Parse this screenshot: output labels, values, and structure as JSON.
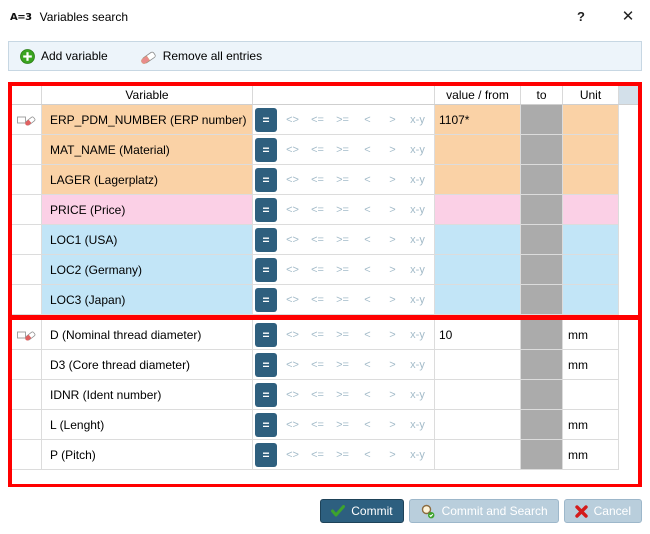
{
  "window": {
    "icon_text": "A=3",
    "title": "Variables search",
    "help_glyph": "?",
    "close_glyph": "✕"
  },
  "toolbar": {
    "add_variable": "Add variable",
    "remove_all": "Remove all entries"
  },
  "table": {
    "headers": {
      "variable": "Variable",
      "value_from": "value / from",
      "to": "to",
      "unit": "Unit"
    },
    "operators": [
      {
        "name": "eq",
        "label": "=",
        "selected": true
      },
      {
        "name": "ne",
        "label": "<>",
        "selected": false
      },
      {
        "name": "le",
        "label": "<=",
        "selected": false
      },
      {
        "name": "ge",
        "label": ">=",
        "selected": false
      },
      {
        "name": "lt",
        "label": "<",
        "selected": false
      },
      {
        "name": "gt",
        "label": ">",
        "selected": false
      },
      {
        "name": "range",
        "label": "x-y",
        "selected": false
      }
    ],
    "groups": [
      {
        "rows": [
          {
            "label": "ERP_PDM_NUMBER (ERP number)",
            "color": "peach",
            "edit_icon": true,
            "value": "1107*",
            "unit": ""
          },
          {
            "label": "MAT_NAME (Material)",
            "color": "peach",
            "edit_icon": false,
            "value": "",
            "unit": ""
          },
          {
            "label": "LAGER (Lagerplatz)",
            "color": "peach",
            "edit_icon": false,
            "value": "",
            "unit": ""
          },
          {
            "label": "PRICE (Price)",
            "color": "pink",
            "edit_icon": false,
            "value": "",
            "unit": ""
          },
          {
            "label": "LOC1 (USA)",
            "color": "blue",
            "edit_icon": false,
            "value": "",
            "unit": ""
          },
          {
            "label": "LOC2 (Germany)",
            "color": "blue",
            "edit_icon": false,
            "value": "",
            "unit": ""
          },
          {
            "label": "LOC3 (Japan)",
            "color": "blue",
            "edit_icon": false,
            "value": "",
            "unit": ""
          }
        ]
      },
      {
        "rows": [
          {
            "label": "D (Nominal thread diameter)",
            "color": "white",
            "edit_icon": true,
            "value": "10",
            "unit": "mm"
          },
          {
            "label": "D3 (Core thread diameter)",
            "color": "white",
            "edit_icon": false,
            "value": "",
            "unit": "mm"
          },
          {
            "label": "IDNR (Ident number)",
            "color": "white",
            "edit_icon": false,
            "value": "",
            "unit": ""
          },
          {
            "label": "L (Lenght)",
            "color": "white",
            "edit_icon": false,
            "value": "",
            "unit": "mm"
          },
          {
            "label": "P (Pitch)",
            "color": "white",
            "edit_icon": false,
            "value": "",
            "unit": "mm"
          }
        ]
      }
    ]
  },
  "buttons": {
    "commit": "Commit",
    "commit_and_search": "Commit and Search",
    "cancel": "Cancel"
  },
  "colors": {
    "peach": "#FAD2A6",
    "pink": "#FBD0E6",
    "blue": "#C2E5F7",
    "white": "#FFFFFF",
    "disabled_gray": "#ABABAB",
    "selected_operator_bg": "#2E5F7E",
    "accent_red": "#FF0000"
  }
}
